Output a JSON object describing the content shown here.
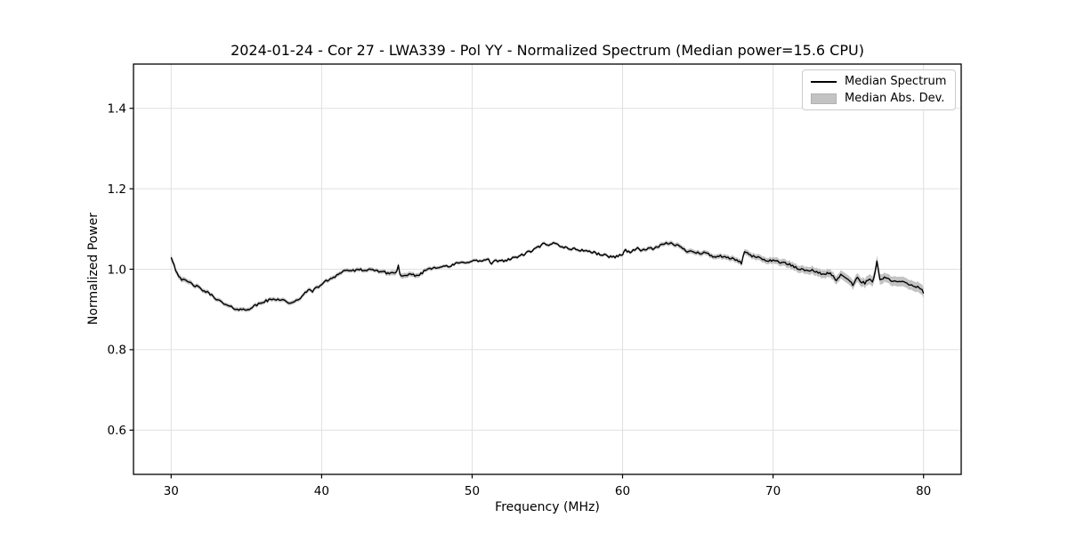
{
  "figure": {
    "title": "2024-01-24 - Cor 27 - LWA339 - Pol YY - Normalized Spectrum (Median power=15.6 CPU)",
    "xlabel": "Frequency (MHz)",
    "ylabel": "Normalized Power"
  },
  "legend": {
    "items": [
      {
        "label": "Median Spectrum",
        "swatch": "line"
      },
      {
        "label": "Median Abs. Dev.",
        "swatch": "patch"
      }
    ]
  },
  "colors": {
    "line": "#000000",
    "band": "#c3c3c3",
    "grid": "#e0e0e0",
    "spine": "#000000",
    "text": "#000000"
  },
  "chart_data": {
    "type": "line",
    "title": "2024-01-24 - Cor 27 - LWA339 - Pol YY - Normalized Spectrum (Median power=15.6 CPU)",
    "xlabel": "Frequency (MHz)",
    "ylabel": "Normalized Power",
    "xlim": [
      27.5,
      82.5
    ],
    "ylim": [
      0.49,
      1.51
    ],
    "xticks": [
      30,
      40,
      50,
      60,
      70,
      80
    ],
    "yticks": [
      0.6,
      0.8,
      1.0,
      1.2,
      1.4
    ],
    "grid": true,
    "legend_position": "upper right",
    "noise_amplitude": 0.0032,
    "series": [
      {
        "name": "Median Spectrum",
        "color": "#000000",
        "points": [
          [
            30.0,
            1.031
          ],
          [
            30.15,
            1.017
          ],
          [
            30.3,
            0.998
          ],
          [
            30.5,
            0.985
          ],
          [
            30.7,
            0.975
          ],
          [
            30.9,
            0.971
          ],
          [
            31.1,
            0.969
          ],
          [
            31.4,
            0.963
          ],
          [
            31.7,
            0.957
          ],
          [
            32.0,
            0.95
          ],
          [
            32.3,
            0.944
          ],
          [
            32.6,
            0.938
          ],
          [
            32.9,
            0.93
          ],
          [
            33.2,
            0.921
          ],
          [
            33.5,
            0.914
          ],
          [
            33.8,
            0.908
          ],
          [
            34.1,
            0.904
          ],
          [
            34.4,
            0.901
          ],
          [
            34.7,
            0.899
          ],
          [
            35.0,
            0.9
          ],
          [
            35.3,
            0.904
          ],
          [
            35.6,
            0.909
          ],
          [
            35.9,
            0.915
          ],
          [
            36.2,
            0.92
          ],
          [
            36.5,
            0.923
          ],
          [
            36.8,
            0.925
          ],
          [
            37.1,
            0.926
          ],
          [
            37.4,
            0.924
          ],
          [
            37.7,
            0.92
          ],
          [
            37.95,
            0.913
          ],
          [
            38.2,
            0.918
          ],
          [
            38.5,
            0.927
          ],
          [
            38.8,
            0.936
          ],
          [
            39.1,
            0.947
          ],
          [
            39.25,
            0.952
          ],
          [
            39.4,
            0.946
          ],
          [
            39.7,
            0.954
          ],
          [
            40.0,
            0.963
          ],
          [
            40.3,
            0.97
          ],
          [
            40.6,
            0.977
          ],
          [
            40.9,
            0.983
          ],
          [
            41.2,
            0.99
          ],
          [
            41.5,
            0.996
          ],
          [
            41.8,
            0.998
          ],
          [
            42.1,
            0.996
          ],
          [
            42.4,
            0.997
          ],
          [
            42.7,
            0.999
          ],
          [
            43.0,
            0.996
          ],
          [
            43.3,
            0.998
          ],
          [
            43.6,
            0.997
          ],
          [
            43.9,
            0.995
          ],
          [
            44.2,
            0.992
          ],
          [
            44.5,
            0.99
          ],
          [
            44.8,
            0.991
          ],
          [
            45.0,
            0.994
          ],
          [
            45.1,
            1.01
          ],
          [
            45.25,
            0.981
          ],
          [
            45.5,
            0.982
          ],
          [
            45.8,
            0.985
          ],
          [
            46.1,
            0.986
          ],
          [
            46.4,
            0.984
          ],
          [
            46.7,
            0.992
          ],
          [
            47.0,
            1.0
          ],
          [
            47.3,
            1.003
          ],
          [
            47.6,
            1.005
          ],
          [
            47.9,
            1.007
          ],
          [
            48.2,
            1.008
          ],
          [
            48.45,
            1.004
          ],
          [
            48.7,
            1.011
          ],
          [
            49.0,
            1.014
          ],
          [
            49.3,
            1.016
          ],
          [
            49.6,
            1.018
          ],
          [
            49.9,
            1.02
          ],
          [
            50.2,
            1.021
          ],
          [
            50.5,
            1.02
          ],
          [
            50.8,
            1.022
          ],
          [
            51.1,
            1.024
          ],
          [
            51.3,
            1.011
          ],
          [
            51.5,
            1.02
          ],
          [
            51.8,
            1.021
          ],
          [
            52.1,
            1.022
          ],
          [
            52.4,
            1.024
          ],
          [
            52.7,
            1.027
          ],
          [
            53.0,
            1.031
          ],
          [
            53.3,
            1.035
          ],
          [
            53.6,
            1.04
          ],
          [
            53.9,
            1.045
          ],
          [
            54.2,
            1.05
          ],
          [
            54.5,
            1.057
          ],
          [
            54.8,
            1.064
          ],
          [
            55.05,
            1.056
          ],
          [
            55.3,
            1.063
          ],
          [
            55.5,
            1.066
          ],
          [
            55.8,
            1.059
          ],
          [
            56.1,
            1.055
          ],
          [
            56.4,
            1.052
          ],
          [
            56.7,
            1.05
          ],
          [
            57.0,
            1.049
          ],
          [
            57.3,
            1.047
          ],
          [
            57.6,
            1.046
          ],
          [
            57.9,
            1.043
          ],
          [
            58.2,
            1.04
          ],
          [
            58.5,
            1.037
          ],
          [
            58.8,
            1.035
          ],
          [
            59.1,
            1.032
          ],
          [
            59.4,
            1.03
          ],
          [
            59.7,
            1.034
          ],
          [
            60.0,
            1.037
          ],
          [
            60.2,
            1.048
          ],
          [
            60.45,
            1.042
          ],
          [
            60.7,
            1.047
          ],
          [
            60.95,
            1.052
          ],
          [
            61.2,
            1.046
          ],
          [
            61.45,
            1.049
          ],
          [
            61.7,
            1.053
          ],
          [
            61.95,
            1.05
          ],
          [
            62.2,
            1.053
          ],
          [
            62.5,
            1.058
          ],
          [
            62.8,
            1.062
          ],
          [
            63.1,
            1.065
          ],
          [
            63.4,
            1.063
          ],
          [
            63.7,
            1.058
          ],
          [
            64.0,
            1.051
          ],
          [
            64.3,
            1.045
          ],
          [
            64.6,
            1.046
          ],
          [
            64.9,
            1.043
          ],
          [
            65.2,
            1.038
          ],
          [
            65.5,
            1.042
          ],
          [
            65.8,
            1.035
          ],
          [
            66.1,
            1.031
          ],
          [
            66.4,
            1.033
          ],
          [
            66.7,
            1.029
          ],
          [
            67.0,
            1.028
          ],
          [
            67.3,
            1.026
          ],
          [
            67.6,
            1.023
          ],
          [
            67.9,
            1.014
          ],
          [
            68.05,
            1.043
          ],
          [
            68.3,
            1.038
          ],
          [
            68.6,
            1.033
          ],
          [
            68.9,
            1.03
          ],
          [
            69.2,
            1.026
          ],
          [
            69.5,
            1.023
          ],
          [
            69.8,
            1.022
          ],
          [
            70.1,
            1.021
          ],
          [
            70.4,
            1.019
          ],
          [
            70.7,
            1.016
          ],
          [
            71.0,
            1.012
          ],
          [
            71.3,
            1.008
          ],
          [
            71.6,
            1.002
          ],
          [
            71.9,
            0.999
          ],
          [
            72.2,
            0.997
          ],
          [
            72.5,
            0.999
          ],
          [
            72.8,
            0.993
          ],
          [
            73.1,
            0.99
          ],
          [
            73.4,
            0.988
          ],
          [
            73.7,
            0.99
          ],
          [
            74.0,
            0.983
          ],
          [
            74.25,
            0.972
          ],
          [
            74.45,
            0.986
          ],
          [
            74.7,
            0.981
          ],
          [
            75.0,
            0.977
          ],
          [
            75.3,
            0.96
          ],
          [
            75.55,
            0.982
          ],
          [
            75.8,
            0.97
          ],
          [
            76.1,
            0.966
          ],
          [
            76.4,
            0.973
          ],
          [
            76.65,
            0.969
          ],
          [
            76.9,
            1.02
          ],
          [
            77.1,
            0.973
          ],
          [
            77.4,
            0.98
          ],
          [
            77.65,
            0.974
          ],
          [
            77.9,
            0.972
          ],
          [
            78.2,
            0.967
          ],
          [
            78.5,
            0.97
          ],
          [
            78.8,
            0.965
          ],
          [
            79.1,
            0.961
          ],
          [
            79.4,
            0.958
          ],
          [
            79.7,
            0.954
          ],
          [
            79.9,
            0.95
          ],
          [
            80.0,
            0.941
          ]
        ]
      },
      {
        "name": "Median Abs. Dev.",
        "color": "#c3c3c3",
        "band_halfwidth_points": [
          [
            30.0,
            0.008
          ],
          [
            31.0,
            0.006
          ],
          [
            33.0,
            0.005
          ],
          [
            36.0,
            0.005
          ],
          [
            40.0,
            0.005
          ],
          [
            44.0,
            0.005
          ],
          [
            45.1,
            0.007
          ],
          [
            48.0,
            0.004
          ],
          [
            52.0,
            0.004
          ],
          [
            56.0,
            0.004
          ],
          [
            60.0,
            0.004
          ],
          [
            62.0,
            0.005
          ],
          [
            64.0,
            0.006
          ],
          [
            66.0,
            0.006
          ],
          [
            68.0,
            0.007
          ],
          [
            70.0,
            0.008
          ],
          [
            71.0,
            0.009
          ],
          [
            72.0,
            0.009
          ],
          [
            73.0,
            0.01
          ],
          [
            74.0,
            0.01
          ],
          [
            75.0,
            0.011
          ],
          [
            76.0,
            0.011
          ],
          [
            76.9,
            0.014
          ],
          [
            77.5,
            0.011
          ],
          [
            78.0,
            0.012
          ],
          [
            79.0,
            0.012
          ],
          [
            80.0,
            0.013
          ]
        ]
      }
    ]
  }
}
